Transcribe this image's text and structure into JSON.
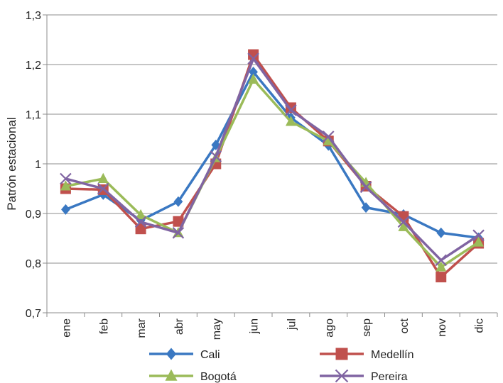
{
  "chart_data": {
    "type": "line",
    "title": "",
    "xlabel": "",
    "ylabel": "Patrón estacional",
    "ylim": [
      0.7,
      1.3
    ],
    "yticks": [
      "0,7",
      "0,8",
      "0,9",
      "1",
      "1,1",
      "1,2",
      "1,3"
    ],
    "ytick_values": [
      0.7,
      0.8,
      0.9,
      1.0,
      1.1,
      1.2,
      1.3
    ],
    "grid": true,
    "legend_position": "bottom",
    "categories": [
      "ene",
      "feb",
      "mar",
      "abr",
      "may",
      "jun",
      "jul",
      "ago",
      "sep",
      "oct",
      "nov",
      "dic"
    ],
    "series": [
      {
        "name": "Cali",
        "color": "#3a78c2",
        "marker": "diamond",
        "values": [
          0.908,
          0.938,
          0.886,
          0.924,
          1.038,
          1.185,
          1.093,
          1.037,
          0.912,
          0.898,
          0.861,
          0.851
        ]
      },
      {
        "name": "Medellín",
        "color": "#c0504d",
        "marker": "square",
        "values": [
          0.95,
          0.948,
          0.869,
          0.884,
          1.0,
          1.22,
          1.113,
          1.046,
          0.955,
          0.894,
          0.772,
          0.84
        ]
      },
      {
        "name": "Bogotá",
        "color": "#9bbb59",
        "marker": "triangle",
        "values": [
          0.955,
          0.97,
          0.897,
          0.861,
          1.012,
          1.17,
          1.085,
          1.046,
          0.962,
          0.873,
          0.792,
          0.842
        ]
      },
      {
        "name": "Pereira",
        "color": "#8064a2",
        "marker": "x",
        "values": [
          0.97,
          0.95,
          0.883,
          0.861,
          1.015,
          1.212,
          1.108,
          1.055,
          0.953,
          0.883,
          0.806,
          0.856
        ]
      }
    ]
  }
}
